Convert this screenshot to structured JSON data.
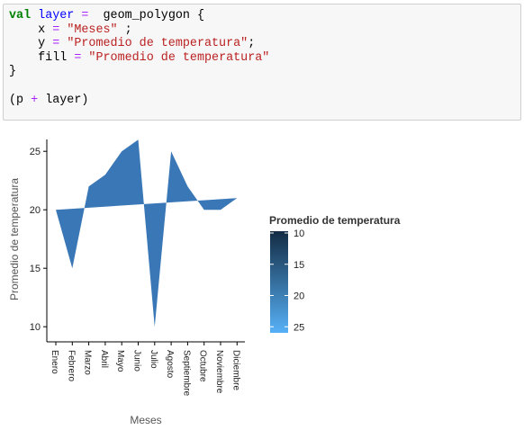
{
  "code": {
    "lines": [
      [
        {
          "t": "val",
          "c": "kw"
        },
        {
          "t": " "
        },
        {
          "t": "layer",
          "c": "var"
        },
        {
          "t": " "
        },
        {
          "t": "=",
          "c": "op"
        },
        {
          "t": "  geom_polygon {"
        }
      ],
      [
        {
          "t": "    x "
        },
        {
          "t": "=",
          "c": "op"
        },
        {
          "t": " "
        },
        {
          "t": "\"Meses\"",
          "c": "str"
        },
        {
          "t": " ;"
        }
      ],
      [
        {
          "t": "    y "
        },
        {
          "t": "=",
          "c": "op"
        },
        {
          "t": " "
        },
        {
          "t": "\"Promedio de temperatura\"",
          "c": "str"
        },
        {
          "t": ";"
        }
      ],
      [
        {
          "t": "    fill "
        },
        {
          "t": "=",
          "c": "op"
        },
        {
          "t": " "
        },
        {
          "t": "\"Promedio de temperatura\"",
          "c": "str"
        }
      ],
      [
        {
          "t": "}"
        }
      ],
      [
        {
          "t": ""
        }
      ],
      [
        {
          "t": "(p "
        },
        {
          "t": "+",
          "c": "op"
        },
        {
          "t": " layer)"
        }
      ]
    ]
  },
  "chart_data": {
    "type": "area",
    "geom": "polygon",
    "categories": [
      "Enero",
      "Febrero",
      "Marzo",
      "Abril",
      "Mayo",
      "Junio",
      "Julio",
      "Agosto",
      "Septiembre",
      "Octubre",
      "Noviembre",
      "Diciembre"
    ],
    "values": [
      20,
      15,
      22,
      23,
      25,
      26,
      10,
      25,
      22,
      20,
      20,
      21
    ],
    "xlabel": "Meses",
    "ylabel": "Promedio de temperatura",
    "ylim": [
      9.5,
      26.5
    ],
    "yticks": [
      10,
      15,
      20,
      25
    ],
    "fill_color": "#3a77b6",
    "legend": {
      "title": "Promedio de temperatura",
      "ticks": [
        10,
        15,
        20,
        25
      ],
      "color_low": "#56b1f7",
      "color_high": "#132b43",
      "placement": "right"
    }
  }
}
